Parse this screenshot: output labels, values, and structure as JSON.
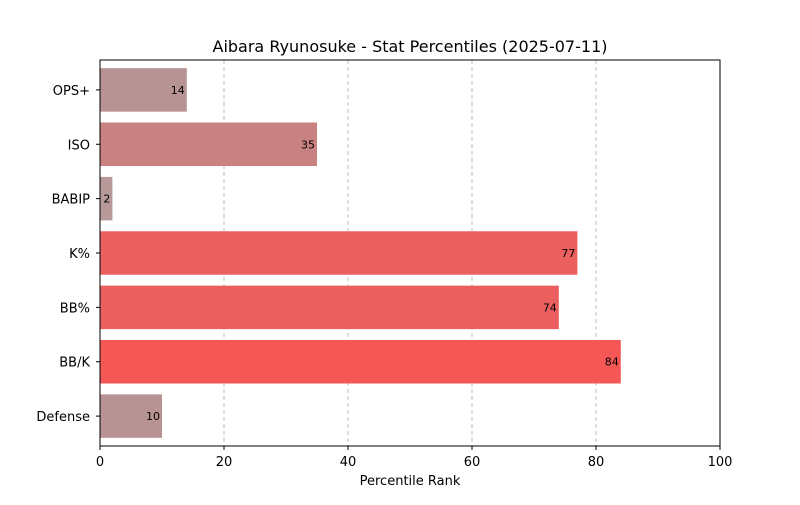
{
  "chart_data": {
    "type": "bar",
    "orientation": "horizontal",
    "title": "Aibara Ryunosuke - Stat Percentiles (2025-07-11)",
    "xlabel": "Percentile Rank",
    "ylabel": "",
    "xlim": [
      0,
      100
    ],
    "xticks": [
      0,
      20,
      40,
      60,
      80,
      100
    ],
    "grid": "x-axis dashed",
    "categories": [
      "OPS+",
      "ISO",
      "BABIP",
      "K%",
      "BB%",
      "BB/K",
      "Defense"
    ],
    "values": [
      14,
      35,
      2,
      77,
      74,
      84,
      10
    ],
    "colors": [
      "#b89393",
      "#c98181",
      "#b89999",
      "#ec6060",
      "#eb5f5f",
      "#f55656",
      "#b89393"
    ]
  }
}
